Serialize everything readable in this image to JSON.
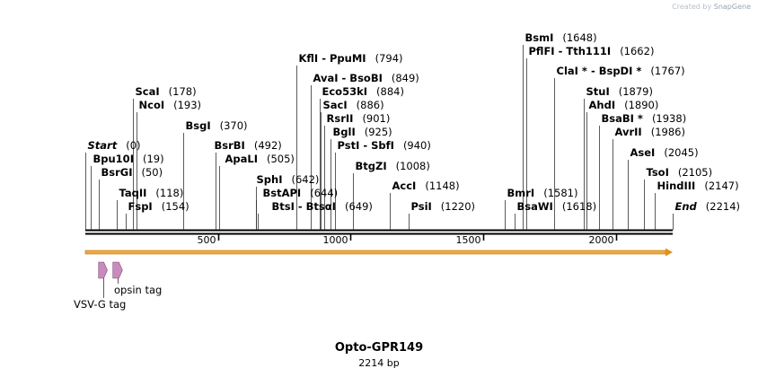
{
  "credit": {
    "prefix": "Created by",
    "brand": "SnapGene"
  },
  "title": "Opto-GPR149",
  "size_label": "2214 bp",
  "sequence_length": 2214,
  "scale_ticks": [
    {
      "value": 500,
      "label": "500"
    },
    {
      "value": 1000,
      "label": "1000"
    },
    {
      "value": 1500,
      "label": "1500"
    },
    {
      "value": 2000,
      "label": "2000"
    }
  ],
  "colors": {
    "orf": "#f2a93b",
    "feature": "#c98bbd"
  },
  "features": [
    {
      "name": "VSV-G tag",
      "start": 50,
      "end": 83
    },
    {
      "name": "opsin tag",
      "start": 104,
      "end": 140
    }
  ],
  "sites": [
    {
      "name": "Start",
      "pos": 0,
      "label": "(0)",
      "style": "italic"
    },
    {
      "name": "Bpu10I",
      "pos": 19,
      "label": "(19)"
    },
    {
      "name": "BsrGI",
      "pos": 50,
      "label": "(50)"
    },
    {
      "name": "TaqII",
      "pos": 118,
      "label": "(118)"
    },
    {
      "name": "FspI",
      "pos": 154,
      "label": "(154)"
    },
    {
      "name": "ScaI",
      "pos": 178,
      "label": "(178)"
    },
    {
      "name": "NcoI",
      "pos": 193,
      "label": "(193)"
    },
    {
      "name": "BsgI",
      "pos": 370,
      "label": "(370)"
    },
    {
      "name": "BsrBI",
      "pos": 492,
      "label": "(492)"
    },
    {
      "name": "ApaLI",
      "pos": 505,
      "label": "(505)"
    },
    {
      "name": "SphI",
      "pos": 642,
      "label": "(642)"
    },
    {
      "name": "BstAPI",
      "pos": 644,
      "label": "(644)"
    },
    {
      "name": "BtsI - BtsαI",
      "pos": 649,
      "label": "(649)"
    },
    {
      "name": "KflI - PpuMI",
      "pos": 794,
      "label": "(794)"
    },
    {
      "name": "AvaI - BsoBI",
      "pos": 849,
      "label": "(849)"
    },
    {
      "name": "Eco53kI",
      "pos": 884,
      "label": "(884)"
    },
    {
      "name": "SacI",
      "pos": 886,
      "label": "(886)"
    },
    {
      "name": "RsrII",
      "pos": 901,
      "label": "(901)"
    },
    {
      "name": "BglI",
      "pos": 925,
      "label": "(925)"
    },
    {
      "name": "PstI - SbfI",
      "pos": 940,
      "label": "(940)"
    },
    {
      "name": "BtgZI",
      "pos": 1008,
      "label": "(1008)"
    },
    {
      "name": "AccI",
      "pos": 1148,
      "label": "(1148)"
    },
    {
      "name": "PsiI",
      "pos": 1220,
      "label": "(1220)"
    },
    {
      "name": "BmrI",
      "pos": 1581,
      "label": "(1581)"
    },
    {
      "name": "BsaWI",
      "pos": 1618,
      "label": "(1618)"
    },
    {
      "name": "BsmI",
      "pos": 1648,
      "label": "(1648)"
    },
    {
      "name": "PflFI - Tth111I",
      "pos": 1662,
      "label": "(1662)"
    },
    {
      "name": "ClaI * - BspDI *",
      "pos": 1767,
      "label": "(1767)"
    },
    {
      "name": "StuI",
      "pos": 1879,
      "label": "(1879)"
    },
    {
      "name": "AhdI",
      "pos": 1890,
      "label": "(1890)"
    },
    {
      "name": "BsaBI *",
      "pos": 1938,
      "label": "(1938)"
    },
    {
      "name": "AvrII",
      "pos": 1986,
      "label": "(1986)"
    },
    {
      "name": "AseI",
      "pos": 2045,
      "label": "(2045)"
    },
    {
      "name": "TsoI",
      "pos": 2105,
      "label": "(2105)"
    },
    {
      "name": "HindIII",
      "pos": 2147,
      "label": "(2147)"
    },
    {
      "name": "End",
      "pos": 2214,
      "label": "(2214)",
      "style": "italic"
    }
  ]
}
